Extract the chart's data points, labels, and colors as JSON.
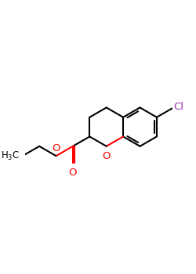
{
  "bg_color": "#ffffff",
  "bond_color": "#000000",
  "oxygen_color": "#ff0000",
  "chlorine_color": "#9933aa",
  "line_width": 1.5,
  "figsize": [
    2.5,
    3.5
  ],
  "dpi": 100,
  "xlim": [
    0,
    10
  ],
  "ylim": [
    0,
    14
  ]
}
